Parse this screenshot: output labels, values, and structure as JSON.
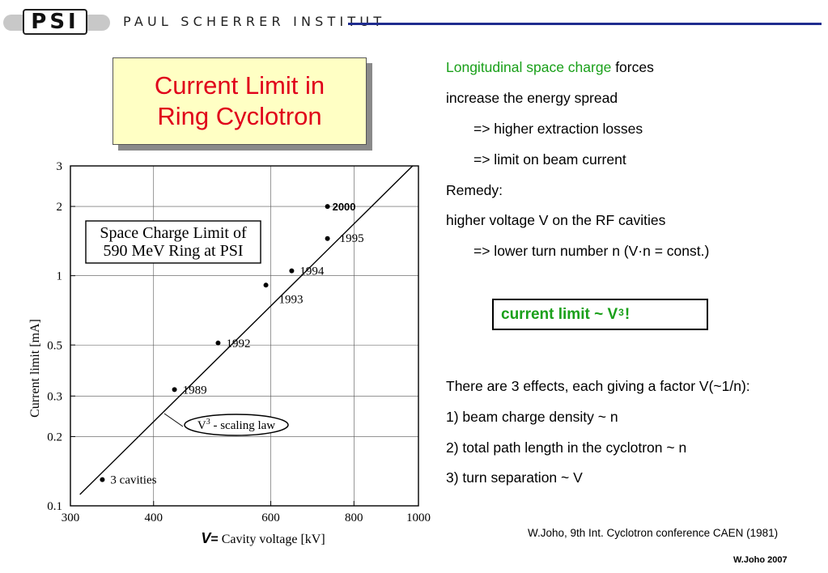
{
  "header": {
    "logo_text": "PSI",
    "institute": "PAUL SCHERRER INSTITUT",
    "line_color": "#1f2c8f"
  },
  "title": {
    "line1": "Current Limit in",
    "line2": "Ring Cyclotron"
  },
  "chart_data": {
    "type": "scatter",
    "title": "Space Charge Limit of 590 MeV Ring at PSI",
    "title_line1": "Space Charge Limit of",
    "title_line2": "590 MeV Ring at PSI",
    "xlabel_symbol": "V",
    "xlabel_eq": "=",
    "xlabel": "Cavity voltage [kV]",
    "ylabel": "Current limit [mA]",
    "x_scale": "log",
    "y_scale": "log",
    "xlim": [
      300,
      1000
    ],
    "ylim": [
      0.1,
      3
    ],
    "x_ticks": [
      300,
      400,
      600,
      800,
      1000
    ],
    "x_tick_labels": [
      "300",
      "400",
      "600",
      "800",
      "1000"
    ],
    "y_ticks": [
      0.1,
      0.2,
      0.3,
      0.5,
      1,
      2,
      3
    ],
    "y_tick_labels": [
      "0.1",
      "0.2",
      "0.3",
      "0.5",
      "1",
      "2",
      "3"
    ],
    "points": [
      {
        "x": 335,
        "y": 0.13,
        "label": "3 cavities"
      },
      {
        "x": 430,
        "y": 0.32,
        "label": "1989"
      },
      {
        "x": 500,
        "y": 0.51,
        "label": "1992"
      },
      {
        "x": 590,
        "y": 0.91,
        "label": "1993"
      },
      {
        "x": 645,
        "y": 1.05,
        "label": "1994"
      },
      {
        "x": 730,
        "y": 1.45,
        "label": "1995"
      },
      {
        "x": 730,
        "y": 2.0,
        "label": "2000"
      }
    ],
    "fit_line": {
      "label": "V3 - scaling law",
      "x": [
        310,
        980
      ],
      "y": [
        0.112,
        3.0
      ]
    },
    "annotation": {
      "base": "V",
      "sup": "3",
      "rest": " - scaling law"
    },
    "grid": true,
    "point_color": "#000000"
  },
  "text_right": {
    "line1_green": "Longitudinal space charge",
    "line1_rest": " forces",
    "line2": "increase the energy spread",
    "line3": "=> higher extraction losses",
    "line4": "=> limit on beam current",
    "line5": "Remedy:",
    "line6": "higher voltage V on the RF cavities",
    "line7": "=> lower turn number n  (V·n = const.)"
  },
  "result": {
    "prefix": "current limit  ~  V",
    "sup": "3",
    "suffix": " !",
    "color": "#1aa01a"
  },
  "effects": {
    "intro": "There are 3 effects, each giving a factor V(~1/n):",
    "item1": "1)  beam charge density  ~ n",
    "item2": "2)  total path length in the cyclotron ~ n",
    "item3": "3)  turn separation ~ V"
  },
  "reference": "W.Joho, 9th Int. Cyclotron conference CAEN (1981)",
  "footer": "W.Joho 2007"
}
